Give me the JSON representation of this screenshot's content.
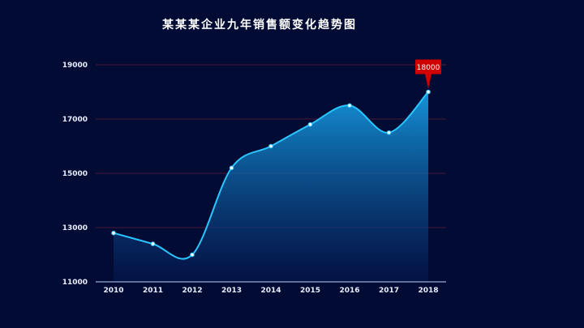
{
  "chart_data": {
    "type": "area",
    "title": "某某某企业九年销售额变化趋势图",
    "x": [
      "2010",
      "2011",
      "2012",
      "2013",
      "2014",
      "2015",
      "2016",
      "2017",
      "2018"
    ],
    "series": [
      {
        "values": [
          12800,
          12400,
          12000,
          15200,
          16000,
          16800,
          17500,
          16500,
          18000
        ]
      }
    ],
    "ylim": [
      11000,
      19000
    ],
    "yticks": [
      11000,
      13000,
      15000,
      17000,
      19000
    ],
    "annotation": {
      "index": 8,
      "label": "18000"
    },
    "grid": true,
    "colors": {
      "line": "#29c6ff",
      "fill_top": "#1699e0",
      "fill_bottom": "#041650",
      "grid": "#4a1a3a",
      "axis": "#7d8fb5",
      "callout": "#d10000"
    }
  }
}
